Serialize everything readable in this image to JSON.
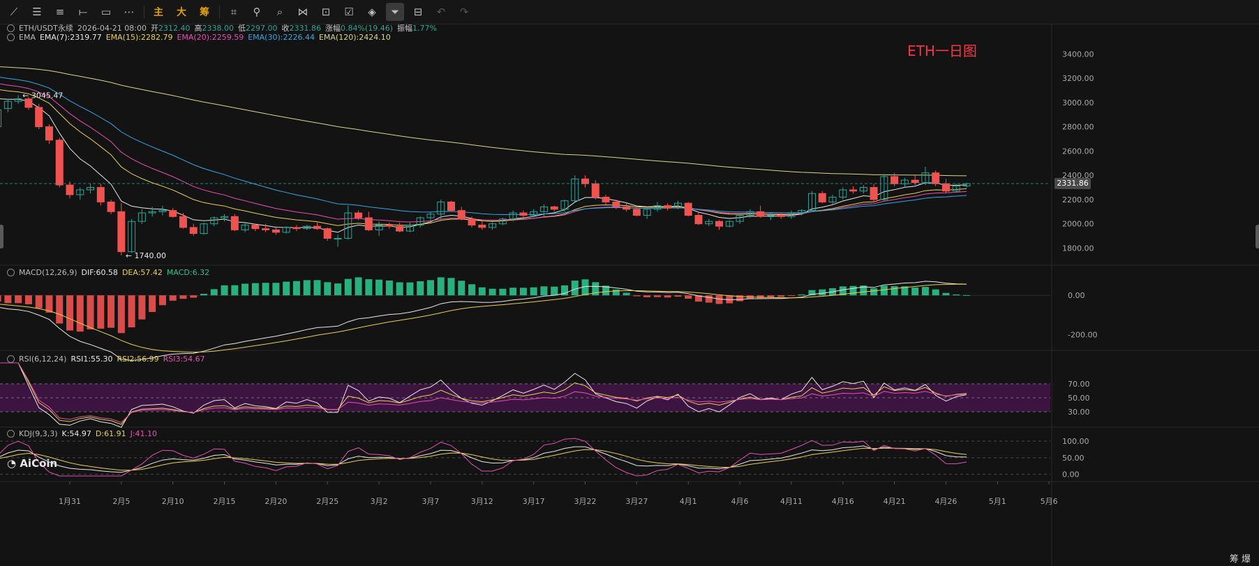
{
  "toolbar": {
    "icons": [
      "trend-line-icon",
      "horizontal-lines-icon",
      "menu-lines-icon",
      "segment-icon",
      "rectangle-icon",
      "dotted-tool-icon",
      "ruler-icon",
      "magnet-icon",
      "search-zoom-icon",
      "pattern-icon",
      "lock-icon",
      "note-icon",
      "eraser-icon",
      "filter-icon",
      "trash-icon",
      "undo-icon",
      "redo-icon"
    ],
    "zhu": "主",
    "da": "大",
    "chou": "筹"
  },
  "symbol": {
    "name": "ETH/USDT永续",
    "datetime": "2026-04-21 08:00",
    "open_label": "开",
    "open": "2312.40",
    "high_label": "高",
    "high": "2338.00",
    "low_label": "低",
    "low": "2297.00",
    "close_label": "收",
    "close": "2331.86",
    "change_label": "涨幅",
    "change": "0.84%(19.46)",
    "amp_label": "振幅",
    "amp": "1.77%"
  },
  "ema": {
    "label": "EMA",
    "e7": "EMA(7):2319.77",
    "e15": "EMA(15):2282.79",
    "e20": "EMA(20):2259.59",
    "e30": "EMA(30):2226.44",
    "e120": "EMA(120):2424.10",
    "colors": {
      "e7": "#e8e8e8",
      "e15": "#e9d14a",
      "e20": "#e84fb3",
      "e30": "#2fa8e6",
      "e120": "#d8d78a"
    }
  },
  "macd": {
    "label": "MACD(12,26,9)",
    "dif": "DIF:60.58",
    "dea": "DEA:57.42",
    "macd": "MACD:6.32"
  },
  "rsi": {
    "label": "RSI(6,12,24)",
    "r1": "RSI1:55.30",
    "r2": "RSI2:56.99",
    "r3": "RSI3:54.67"
  },
  "kdj": {
    "label": "KDJ(9,3,3)",
    "k": "K:54.97",
    "d": "D:61.91",
    "j": "J:41.10"
  },
  "annotation": "ETH一日图",
  "logo": "AiCoin",
  "corner": "筹 爆",
  "high_marker": "3045.47",
  "low_marker": "1740.00",
  "current_price": "2331.86",
  "colors": {
    "up": "#26a69a",
    "down": "#ef5350",
    "bg": "#131313"
  },
  "chart_data": {
    "type": "candlestick",
    "start_date": "2026-01-23",
    "x_ticks": [
      "1月31",
      "2月5",
      "2月10",
      "2月15",
      "2月20",
      "2月25",
      "3月2",
      "3月7",
      "3月12",
      "3月17",
      "3月22",
      "3月27",
      "4月1",
      "4月6",
      "4月11",
      "4月16",
      "4月21",
      "4月26",
      "5月1",
      "5月6"
    ],
    "price_axis": {
      "ticks": [
        "3400.00",
        "3200.00",
        "3000.00",
        "2800.00",
        "2600.00",
        "2400.00",
        "2200.00",
        "2000.00",
        "1800.00"
      ],
      "ylim": [
        1630,
        3500
      ]
    },
    "macd_axis": {
      "ticks": [
        "0.00",
        "-200.00"
      ],
      "ylim": [
        -290,
        100
      ]
    },
    "rsi_axis": {
      "ticks": [
        "70.00",
        "50.00",
        "30.00"
      ],
      "ylim": [
        10,
        95
      ]
    },
    "kdj_axis": {
      "ticks": [
        "100.00",
        "50.00",
        "0.00"
      ],
      "ylim": [
        -5,
        115
      ]
    },
    "ohlc": [
      [
        2960,
        2990,
        2780,
        2800
      ],
      [
        2800,
        2960,
        2760,
        2940
      ],
      [
        2950,
        3030,
        2920,
        3010
      ],
      [
        3010,
        3060,
        2990,
        3030
      ],
      [
        3030,
        3045,
        2940,
        2960
      ],
      [
        2960,
        2990,
        2780,
        2800
      ],
      [
        2800,
        2820,
        2660,
        2690
      ],
      [
        2690,
        2710,
        2300,
        2320
      ],
      [
        2320,
        2350,
        2210,
        2240
      ],
      [
        2240,
        2300,
        2200,
        2280
      ],
      [
        2280,
        2330,
        2250,
        2300
      ],
      [
        2300,
        2330,
        2150,
        2180
      ],
      [
        2180,
        2200,
        2080,
        2100
      ],
      [
        2100,
        2170,
        1740,
        1770
      ],
      [
        1770,
        2040,
        1760,
        2020
      ],
      [
        2020,
        2120,
        2000,
        2090
      ],
      [
        2090,
        2140,
        2060,
        2100
      ],
      [
        2100,
        2150,
        2070,
        2110
      ],
      [
        2110,
        2130,
        2050,
        2060
      ],
      [
        2060,
        2090,
        1960,
        1970
      ],
      [
        1970,
        2000,
        1900,
        1920
      ],
      [
        1920,
        2010,
        1910,
        2000
      ],
      [
        2000,
        2060,
        1980,
        2050
      ],
      [
        2050,
        2080,
        2020,
        2060
      ],
      [
        2060,
        2080,
        1940,
        1950
      ],
      [
        1950,
        2010,
        1930,
        1990
      ],
      [
        1990,
        2000,
        1940,
        1960
      ],
      [
        1960,
        2000,
        1930,
        1950
      ],
      [
        1950,
        1980,
        1910,
        1930
      ],
      [
        1930,
        1980,
        1920,
        1970
      ],
      [
        1970,
        1990,
        1940,
        1960
      ],
      [
        1960,
        1990,
        1950,
        1980
      ],
      [
        1980,
        2010,
        1950,
        1960
      ],
      [
        1960,
        1970,
        1860,
        1880
      ],
      [
        1880,
        1910,
        1810,
        1880
      ],
      [
        1880,
        2150,
        1870,
        2090
      ],
      [
        2090,
        2110,
        2030,
        2050
      ],
      [
        2050,
        2100,
        1940,
        1950
      ],
      [
        1950,
        2020,
        1900,
        1990
      ],
      [
        1990,
        2010,
        1960,
        1980
      ],
      [
        1980,
        2010,
        1930,
        1940
      ],
      [
        1940,
        2010,
        1930,
        1990
      ],
      [
        1990,
        2060,
        1970,
        2050
      ],
      [
        2050,
        2100,
        2030,
        2080
      ],
      [
        2080,
        2200,
        2020,
        2180
      ],
      [
        2180,
        2190,
        2100,
        2110
      ],
      [
        2110,
        2140,
        2030,
        2040
      ],
      [
        2040,
        2060,
        1970,
        1990
      ],
      [
        1990,
        2020,
        1950,
        1970
      ],
      [
        1970,
        2010,
        1950,
        2000
      ],
      [
        2000,
        2050,
        1990,
        2040
      ],
      [
        2040,
        2110,
        2020,
        2090
      ],
      [
        2090,
        2110,
        2050,
        2070
      ],
      [
        2070,
        2120,
        2060,
        2100
      ],
      [
        2100,
        2160,
        2060,
        2140
      ],
      [
        2140,
        2150,
        2100,
        2120
      ],
      [
        2120,
        2200,
        2100,
        2190
      ],
      [
        2190,
        2400,
        2180,
        2370
      ],
      [
        2370,
        2400,
        2300,
        2330
      ],
      [
        2330,
        2360,
        2200,
        2220
      ],
      [
        2220,
        2240,
        2160,
        2180
      ],
      [
        2180,
        2200,
        2120,
        2140
      ],
      [
        2140,
        2180,
        2100,
        2120
      ],
      [
        2120,
        2130,
        2060,
        2070
      ],
      [
        2070,
        2140,
        2040,
        2120
      ],
      [
        2120,
        2180,
        2100,
        2150
      ],
      [
        2150,
        2170,
        2110,
        2130
      ],
      [
        2130,
        2190,
        2120,
        2170
      ],
      [
        2170,
        2180,
        2060,
        2070
      ],
      [
        2070,
        2090,
        1990,
        2000
      ],
      [
        2000,
        2040,
        1980,
        2020
      ],
      [
        2020,
        2030,
        1950,
        1980
      ],
      [
        1980,
        2030,
        1970,
        2020
      ],
      [
        2020,
        2090,
        2000,
        2070
      ],
      [
        2070,
        2120,
        2050,
        2100
      ],
      [
        2100,
        2150,
        2050,
        2060
      ],
      [
        2060,
        2090,
        2030,
        2070
      ],
      [
        2070,
        2090,
        2040,
        2060
      ],
      [
        2060,
        2110,
        2040,
        2090
      ],
      [
        2090,
        2120,
        2070,
        2110
      ],
      [
        2110,
        2270,
        2100,
        2250
      ],
      [
        2250,
        2270,
        2170,
        2180
      ],
      [
        2180,
        2240,
        2160,
        2220
      ],
      [
        2220,
        2300,
        2200,
        2280
      ],
      [
        2280,
        2310,
        2250,
        2270
      ],
      [
        2270,
        2320,
        2250,
        2300
      ],
      [
        2300,
        2330,
        2180,
        2200
      ],
      [
        2200,
        2410,
        2190,
        2390
      ],
      [
        2390,
        2420,
        2310,
        2330
      ],
      [
        2330,
        2380,
        2300,
        2360
      ],
      [
        2360,
        2400,
        2320,
        2340
      ],
      [
        2340,
        2470,
        2320,
        2420
      ],
      [
        2420,
        2440,
        2310,
        2330
      ],
      [
        2330,
        2370,
        2250,
        2270
      ],
      [
        2270,
        2330,
        2260,
        2312.4
      ],
      [
        2312.4,
        2338,
        2297,
        2331.86
      ]
    ]
  }
}
